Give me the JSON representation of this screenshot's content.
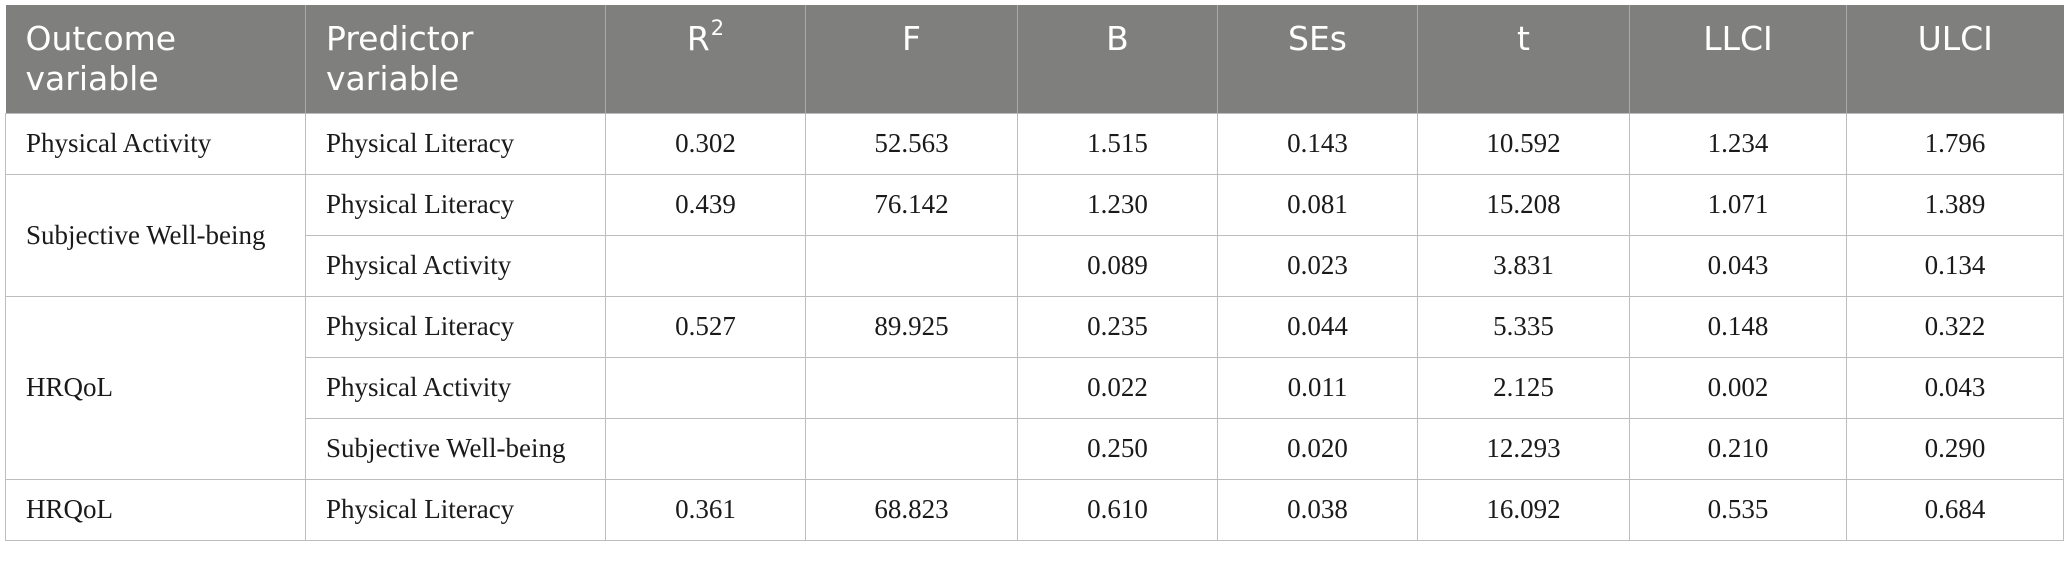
{
  "table": {
    "headers": [
      {
        "text": "Outcome variable",
        "sup": ""
      },
      {
        "text": "Predictor variable",
        "sup": ""
      },
      {
        "text": "R",
        "sup": "2"
      },
      {
        "text": "F",
        "sup": ""
      },
      {
        "text": "B",
        "sup": ""
      },
      {
        "text": "SEs",
        "sup": ""
      },
      {
        "text": "t",
        "sup": ""
      },
      {
        "text": "LLCI",
        "sup": ""
      },
      {
        "text": "ULCI",
        "sup": ""
      }
    ],
    "groups": [
      {
        "outcome": "Physical Activity",
        "rows": [
          {
            "predictor": "Physical Literacy",
            "r2": "0.302",
            "f": "52.563",
            "b": "1.515",
            "se": "0.143",
            "t": "10.592",
            "llci": "1.234",
            "ulci": "1.796"
          }
        ]
      },
      {
        "outcome": "Subjective Well-being",
        "rows": [
          {
            "predictor": "Physical Literacy",
            "r2": "0.439",
            "f": "76.142",
            "b": "1.230",
            "se": "0.081",
            "t": "15.208",
            "llci": "1.071",
            "ulci": "1.389"
          },
          {
            "predictor": "Physical Activity",
            "r2": "",
            "f": "",
            "b": "0.089",
            "se": "0.023",
            "t": "3.831",
            "llci": "0.043",
            "ulci": "0.134"
          }
        ]
      },
      {
        "outcome": "HRQoL",
        "rows": [
          {
            "predictor": "Physical Literacy",
            "r2": "0.527",
            "f": "89.925",
            "b": "0.235",
            "se": "0.044",
            "t": "5.335",
            "llci": "0.148",
            "ulci": "0.322"
          },
          {
            "predictor": "Physical Activity",
            "r2": "",
            "f": "",
            "b": "0.022",
            "se": "0.011",
            "t": "2.125",
            "llci": "0.002",
            "ulci": "0.043"
          },
          {
            "predictor": "Subjective Well-being",
            "r2": "",
            "f": "",
            "b": "0.250",
            "se": "0.020",
            "t": "12.293",
            "llci": "0.210",
            "ulci": "0.290"
          }
        ]
      },
      {
        "outcome": "HRQoL",
        "rows": [
          {
            "predictor": "Physical Literacy",
            "r2": "0.361",
            "f": "68.823",
            "b": "0.610",
            "se": "0.038",
            "t": "16.092",
            "llci": "0.535",
            "ulci": "0.684"
          }
        ]
      }
    ]
  }
}
